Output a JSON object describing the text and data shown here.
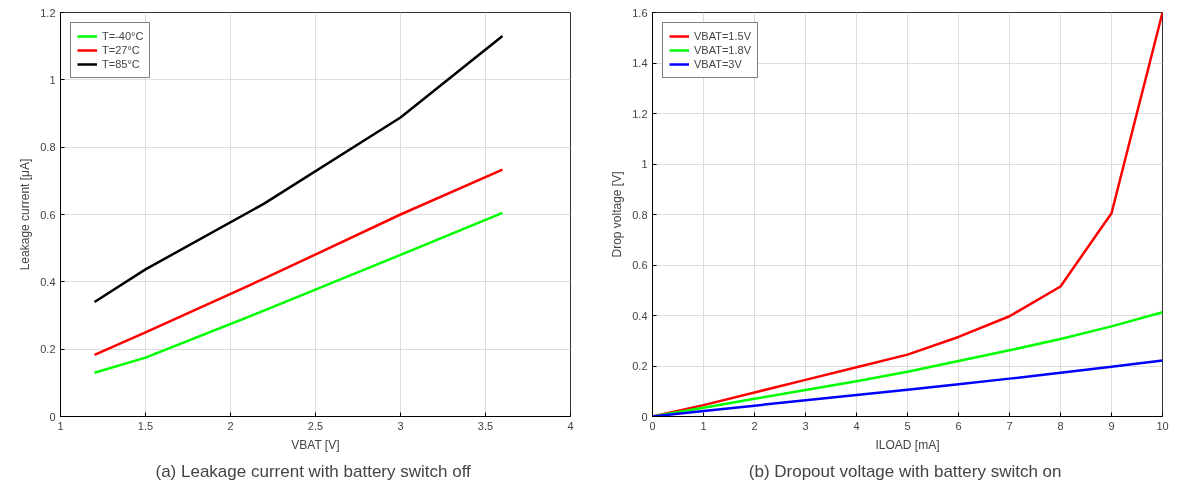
{
  "chart_data": [
    {
      "type": "line",
      "title": "(a)  Leakage current with battery switch off",
      "xlabel": "VBAT [V]",
      "ylabel": "Leakage current [μA]",
      "x": [
        1.2,
        1.5,
        2.2,
        3,
        3.6
      ],
      "series": [
        {
          "name": "T=-40°C",
          "color": "#00ff00",
          "values": [
            0.13,
            0.175,
            0.315,
            0.48,
            0.605
          ]
        },
        {
          "name": "T=27°C",
          "color": "#ff0000",
          "values": [
            0.183,
            0.25,
            0.41,
            0.6,
            0.733
          ]
        },
        {
          "name": "T=85°C",
          "color": "#000000",
          "values": [
            0.34,
            0.437,
            0.633,
            0.888,
            1.13
          ]
        }
      ],
      "xlim": [
        1,
        4
      ],
      "xticks": [
        1,
        1.5,
        2,
        2.5,
        3,
        3.5,
        4
      ],
      "ylim": [
        0,
        1.2
      ],
      "yticks": [
        0,
        0.2,
        0.4,
        0.6,
        0.8,
        1,
        1.2
      ],
      "grid": true,
      "legend": "top left",
      "line_style": "solid"
    },
    {
      "type": "line",
      "title": "(b)  Dropout voltage with battery switch on",
      "xlabel": "ILOAD [mA]",
      "ylabel": "Drop voltage [V]",
      "x": [
        0,
        1,
        2,
        3,
        4,
        5,
        6,
        7,
        8,
        9,
        10
      ],
      "series": [
        {
          "name": "VBAT=1.5V",
          "color": "#ff0000",
          "values": [
            0,
            0.045,
            0.095,
            0.145,
            0.195,
            0.245,
            0.315,
            0.397,
            0.515,
            0.805,
            1.6
          ]
        },
        {
          "name": "VBAT=1.8V",
          "color": "#00ff00",
          "values": [
            0,
            0.035,
            0.07,
            0.105,
            0.14,
            0.177,
            0.22,
            0.262,
            0.307,
            0.357,
            0.413
          ]
        },
        {
          "name": "VBAT=3V",
          "color": "#0000ff",
          "values": [
            0,
            0.022,
            0.043,
            0.064,
            0.085,
            0.106,
            0.128,
            0.15,
            0.173,
            0.197,
            0.222
          ]
        }
      ],
      "xlim": [
        0,
        10
      ],
      "xticks": [
        0,
        1,
        2,
        3,
        4,
        5,
        6,
        7,
        8,
        9,
        10
      ],
      "ylim": [
        0,
        1.6
      ],
      "yticks": [
        0,
        0.2,
        0.4,
        0.6,
        0.8,
        1,
        1.2,
        1.4,
        1.6
      ],
      "grid": true,
      "legend": "top left",
      "line_style": "solid"
    }
  ]
}
